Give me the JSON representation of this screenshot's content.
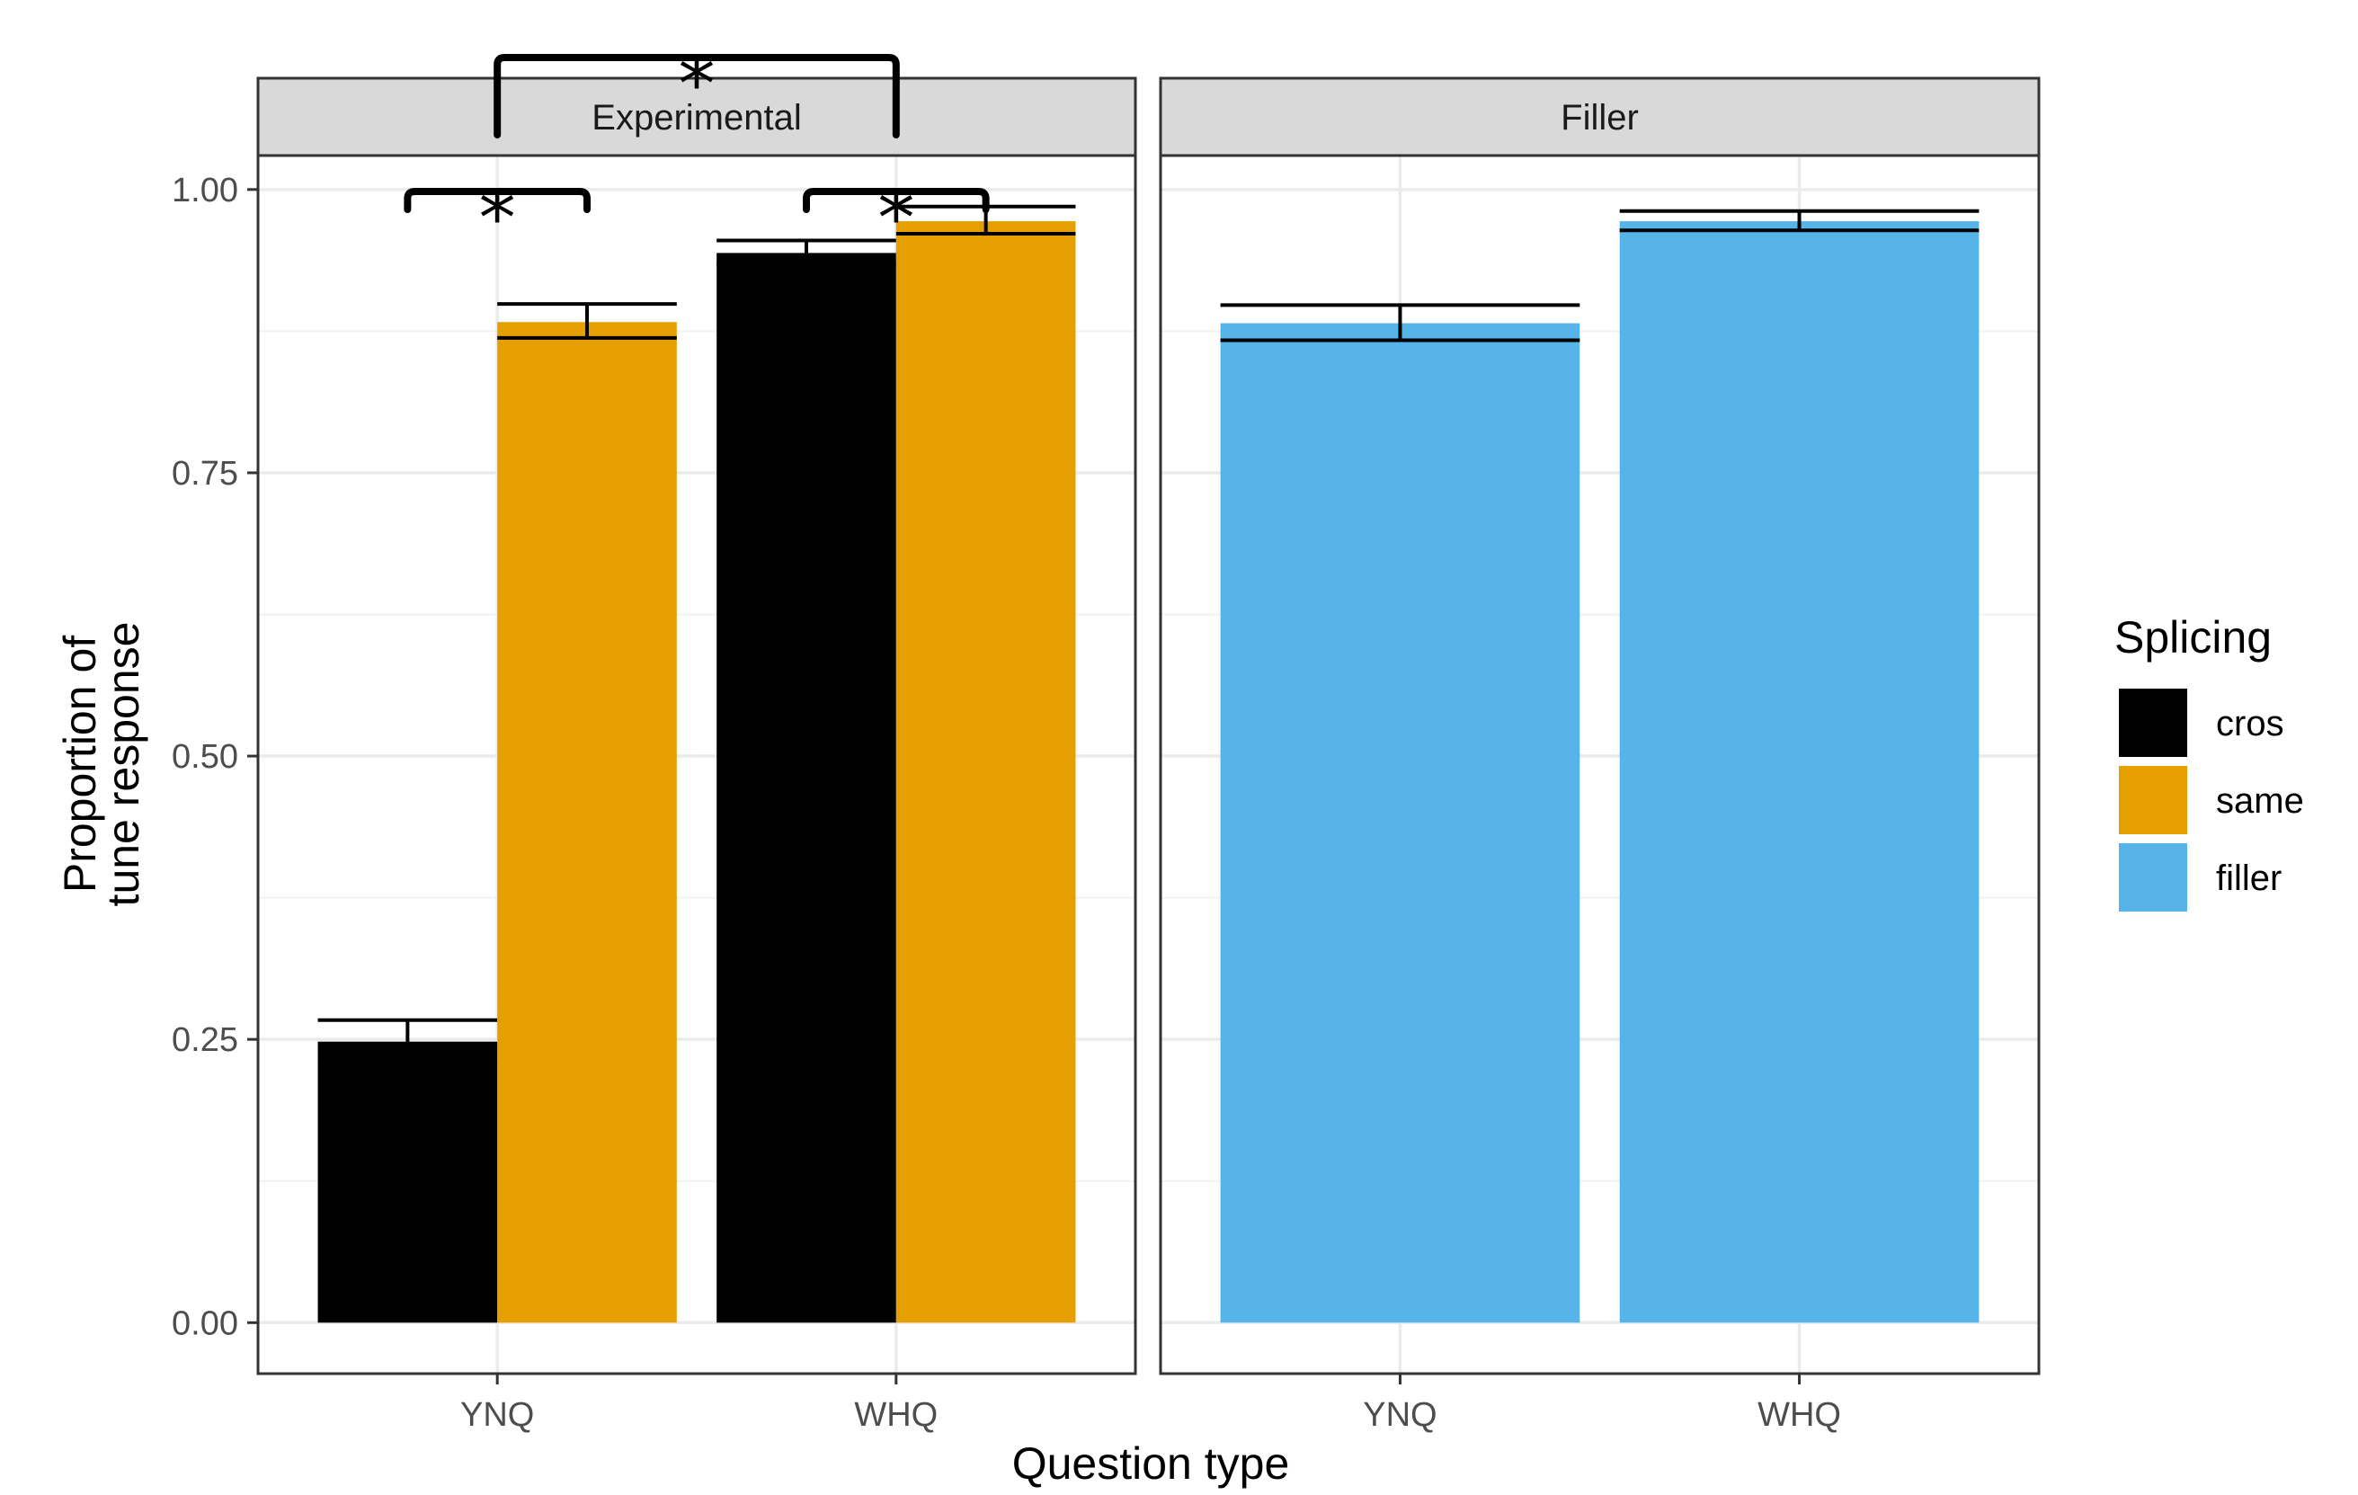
{
  "chart_data": {
    "type": "bar",
    "facets": [
      {
        "label": "Experimental",
        "categories": [
          "YNQ",
          "WHQ"
        ],
        "series": [
          {
            "name": "cros",
            "values": [
              0.248,
              0.944
            ],
            "error_low": [
              0.229,
              0.934
            ],
            "error_high": [
              0.267,
              0.955
            ]
          },
          {
            "name": "same",
            "values": [
              0.883,
              0.972
            ],
            "error_low": [
              0.869,
              0.961
            ],
            "error_high": [
              0.899,
              0.985
            ]
          }
        ],
        "significance": [
          {
            "from": "YNQ.cros",
            "to": "YNQ.same",
            "label": "*"
          },
          {
            "from": "WHQ.cros",
            "to": "WHQ.same",
            "label": "*"
          },
          {
            "from": "YNQ",
            "to": "WHQ",
            "label": "*"
          }
        ]
      },
      {
        "label": "Filler",
        "categories": [
          "YNQ",
          "WHQ"
        ],
        "series": [
          {
            "name": "filler",
            "values": [
              0.882,
              0.972
            ],
            "error_low": [
              0.867,
              0.964
            ],
            "error_high": [
              0.898,
              0.981
            ]
          }
        ]
      }
    ],
    "xlabel": "Question type",
    "ylabel_lines": [
      "Proportion of",
      "tune response"
    ],
    "ylim": [
      -0.045,
      1.03
    ],
    "yticks": [
      0,
      0.25,
      0.5,
      0.75,
      1
    ],
    "ytick_labels": [
      "0.00",
      "0.25",
      "0.50",
      "0.75",
      "1.00"
    ],
    "grid": true,
    "legend": {
      "title": "Splicing",
      "position": "right",
      "entries": [
        {
          "name": "cros",
          "color": "#000000"
        },
        {
          "name": "same",
          "color": "#E69F00"
        },
        {
          "name": "filler",
          "color": "#56B4E9"
        }
      ]
    }
  }
}
